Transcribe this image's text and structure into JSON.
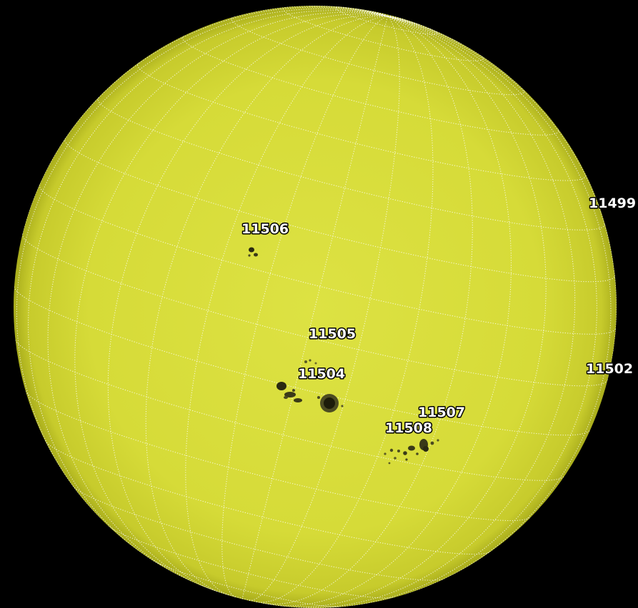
{
  "image": {
    "subject": "solar disk",
    "colors": {
      "background": "#000000",
      "disk": "#d9de3c",
      "disk_edge": "#b8bb22",
      "grid": "#ffffff",
      "spots": "#2a2a12",
      "label_fill": "#ffffff",
      "label_outline": "#000000"
    }
  },
  "regions": [
    {
      "id": "r-11506",
      "number": "11506"
    },
    {
      "id": "r-11499",
      "number": "11499"
    },
    {
      "id": "r-11505",
      "number": "11505"
    },
    {
      "id": "r-11504",
      "number": "11504"
    },
    {
      "id": "r-11502",
      "number": "11502"
    },
    {
      "id": "r-11507",
      "number": "11507"
    },
    {
      "id": "r-11508",
      "number": "11508"
    }
  ]
}
